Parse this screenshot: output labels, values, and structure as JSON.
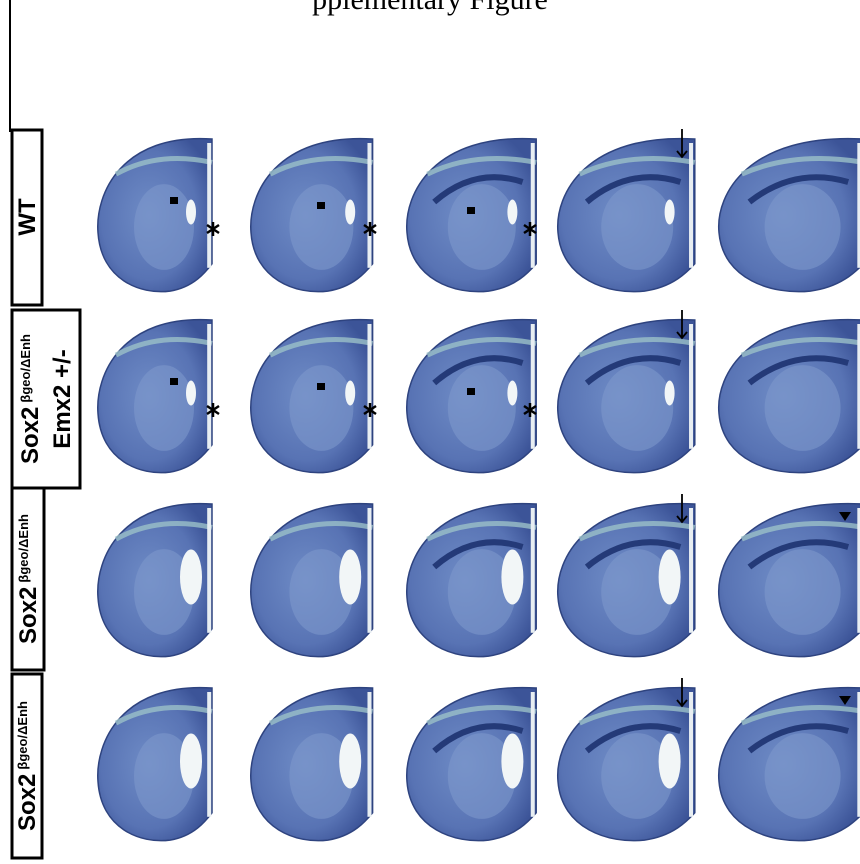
{
  "header": {
    "title": "pplementary Figure"
  },
  "rows": [
    {
      "label": "WT"
    },
    {
      "label": "Sox2",
      "superscript": "βgeo/ΔEnh",
      "line2": "Emx2 +/-"
    },
    {
      "label": "Sox2",
      "superscript": "βgeo/ΔEnh"
    },
    {
      "label": "Sox2",
      "superscript": "βgeo/ΔEnh"
    }
  ]
}
